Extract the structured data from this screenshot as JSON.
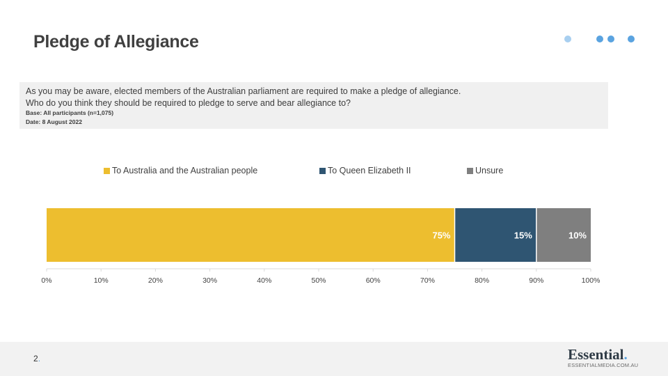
{
  "header": {
    "title": "Pledge of Allegiance"
  },
  "decor": {
    "dot_colors": [
      "#a8cff0",
      "#5aa3e0",
      "#5aa3e0",
      "#5aa3e0"
    ]
  },
  "question": {
    "line1": "As you may be aware, elected members of the Australian parliament are required to make a pledge of allegiance.",
    "line2": "Who do you think they should be required to pledge to serve and bear allegiance to?",
    "base": "Base: All participants (n=1,075)",
    "date": "Date: 8 August 2022"
  },
  "chart_data": {
    "type": "bar",
    "orientation": "horizontal",
    "stacked": true,
    "categories": [
      ""
    ],
    "series": [
      {
        "name": "To Australia and the Australian people",
        "values": [
          75
        ],
        "label": "75%",
        "color": "#EDBE2F"
      },
      {
        "name": "To Queen Elizabeth II",
        "values": [
          15
        ],
        "label": "15%",
        "color": "#2F5572"
      },
      {
        "name": "Unsure",
        "values": [
          10
        ],
        "label": "10%",
        "color": "#7F7F7F"
      }
    ],
    "xlim": [
      0,
      100
    ],
    "xticks": [
      "0%",
      "10%",
      "20%",
      "30%",
      "40%",
      "50%",
      "60%",
      "70%",
      "80%",
      "90%",
      "100%"
    ],
    "legend": "top",
    "grid": false
  },
  "footer": {
    "page_number": "2",
    "page_dot": ".",
    "brand_name": "Essential",
    "brand_dot": ".",
    "brand_url": "ESSENTIALMEDIA.COM.AU"
  }
}
